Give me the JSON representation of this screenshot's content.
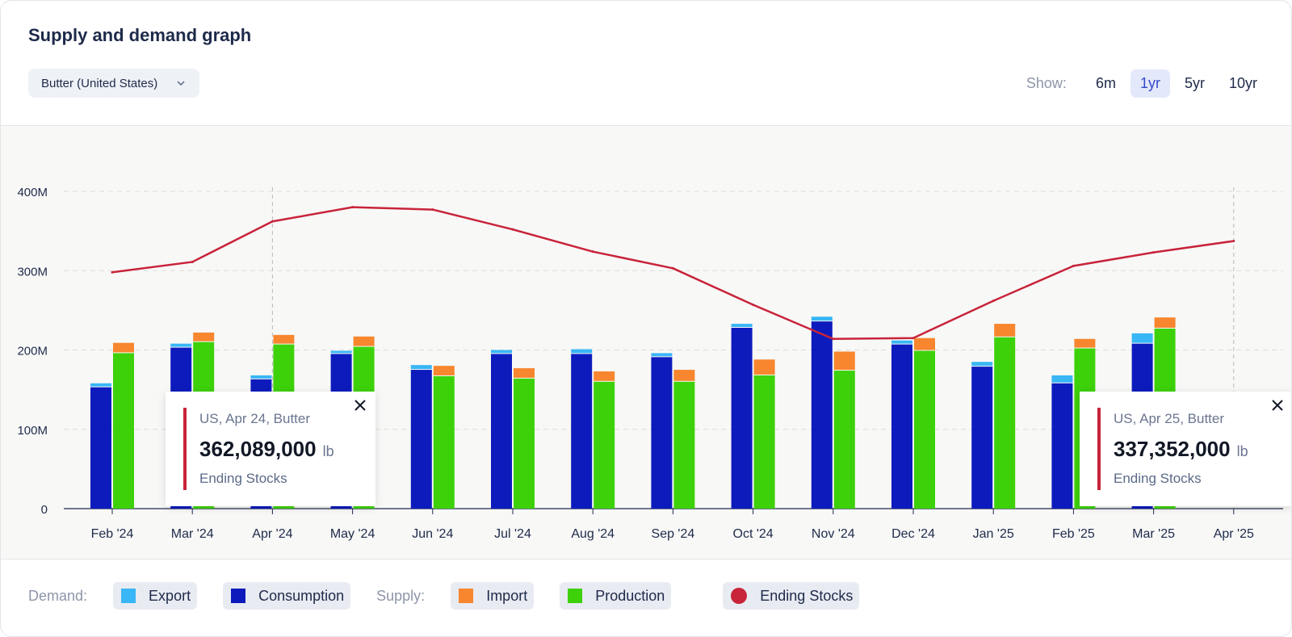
{
  "title": "Supply and demand graph",
  "dropdown": {
    "value": "Butter (United States)"
  },
  "range": {
    "show_label": "Show:",
    "options": [
      "6m",
      "1yr",
      "5yr",
      "10yr"
    ],
    "active": "1yr"
  },
  "legend": {
    "demand_label": "Demand:",
    "supply_label": "Supply:",
    "export": "Export",
    "consumption": "Consumption",
    "import": "Import",
    "production": "Production",
    "ending_stocks": "Ending Stocks"
  },
  "colors": {
    "export": "#38b6f5",
    "consumption": "#0d1bbd",
    "import": "#f7862e",
    "production": "#3dd10a",
    "ending_stocks": "#c8243a"
  },
  "tooltips": [
    {
      "title": "US, Apr 24, Butter",
      "value": "362,089,000",
      "unit": "lb",
      "label": "Ending Stocks"
    },
    {
      "title": "US, Apr 25, Butter",
      "value": "337,352,000",
      "unit": "lb",
      "label": "Ending Stocks"
    }
  ],
  "chart_data": {
    "type": "bar",
    "categories": [
      "Feb '24",
      "Mar '24",
      "Apr '24",
      "May '24",
      "Jun '24",
      "Jul '24",
      "Aug '24",
      "Sep '24",
      "Oct '24",
      "Nov '24",
      "Dec '24",
      "Jan '25",
      "Feb '25",
      "Mar '25",
      "Apr '25"
    ],
    "y_ticks": [
      "0",
      "100M",
      "200M",
      "300M",
      "400M"
    ],
    "ylim": [
      0,
      400000000
    ],
    "grid": true,
    "series": [
      {
        "name": "Consumption",
        "stack": "demand",
        "values": [
          153000000,
          203000000,
          163000000,
          195000000,
          175000000,
          195000000,
          195000000,
          191000000,
          228000000,
          236000000,
          207000000,
          179000000,
          158000000,
          208000000,
          null
        ]
      },
      {
        "name": "Export",
        "stack": "demand",
        "values": [
          5000000,
          5000000,
          5000000,
          4000000,
          6000000,
          5000000,
          6000000,
          5000000,
          5000000,
          6000000,
          5000000,
          6000000,
          10000000,
          13000000,
          null
        ]
      },
      {
        "name": "Production",
        "stack": "supply",
        "values": [
          196000000,
          210000000,
          207000000,
          204000000,
          167000000,
          164000000,
          160000000,
          160000000,
          168000000,
          174000000,
          199000000,
          216000000,
          202000000,
          227000000,
          null
        ]
      },
      {
        "name": "Import",
        "stack": "supply",
        "values": [
          13000000,
          12000000,
          12000000,
          13000000,
          13000000,
          13000000,
          13000000,
          15000000,
          20000000,
          24000000,
          16000000,
          17000000,
          12000000,
          14000000,
          null
        ]
      },
      {
        "name": "Ending Stocks",
        "type": "line",
        "values": [
          298000000,
          311000000,
          362089000,
          380000000,
          377000000,
          352000000,
          324000000,
          303000000,
          257000000,
          214000000,
          215000000,
          262000000,
          306000000,
          323000000,
          337352000
        ]
      }
    ],
    "highlight_categories": [
      "Apr '24",
      "Apr '25"
    ]
  }
}
